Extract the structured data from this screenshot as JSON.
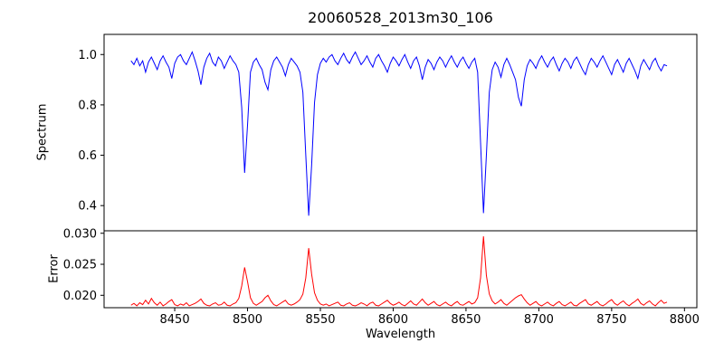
{
  "figure": {
    "background": "#ffffff",
    "spine_color": "#000000"
  },
  "chart_data": {
    "type": "line",
    "title": "20060528_2013m30_106",
    "xlabel": "Wavelength",
    "xlim": [
      8401.5,
      8808.5
    ],
    "xticks": [
      8450,
      8500,
      8550,
      8600,
      8650,
      8700,
      8750,
      8800
    ],
    "xticklabels": [
      "8450",
      "8500",
      "8550",
      "8600",
      "8650",
      "8700",
      "8750",
      "8800"
    ],
    "x": [
      8420,
      8422,
      8424,
      8426,
      8428,
      8430,
      8432,
      8434,
      8436,
      8438,
      8440,
      8442,
      8444,
      8446,
      8448,
      8450,
      8452,
      8454,
      8456,
      8458,
      8460,
      8462,
      8464,
      8466,
      8468,
      8470,
      8472,
      8474,
      8476,
      8478,
      8480,
      8482,
      8484,
      8486,
      8488,
      8490,
      8492,
      8494,
      8496,
      8498,
      8500,
      8502,
      8504,
      8506,
      8508,
      8510,
      8512,
      8514,
      8516,
      8518,
      8520,
      8522,
      8524,
      8526,
      8528,
      8530,
      8532,
      8534,
      8536,
      8538,
      8540,
      8542,
      8544,
      8546,
      8548,
      8550,
      8552,
      8554,
      8556,
      8558,
      8560,
      8562,
      8564,
      8566,
      8568,
      8570,
      8572,
      8574,
      8576,
      8578,
      8580,
      8582,
      8584,
      8586,
      8588,
      8590,
      8592,
      8594,
      8596,
      8598,
      8600,
      8602,
      8604,
      8606,
      8608,
      8610,
      8612,
      8614,
      8616,
      8618,
      8620,
      8622,
      8624,
      8626,
      8628,
      8630,
      8632,
      8634,
      8636,
      8638,
      8640,
      8642,
      8644,
      8646,
      8648,
      8650,
      8652,
      8654,
      8656,
      8658,
      8660,
      8662,
      8664,
      8666,
      8668,
      8670,
      8672,
      8674,
      8676,
      8678,
      8680,
      8682,
      8684,
      8686,
      8688,
      8690,
      8692,
      8694,
      8696,
      8698,
      8700,
      8702,
      8704,
      8706,
      8708,
      8710,
      8712,
      8714,
      8716,
      8718,
      8720,
      8722,
      8724,
      8726,
      8728,
      8730,
      8732,
      8734,
      8736,
      8738,
      8740,
      8742,
      8744,
      8746,
      8748,
      8750,
      8752,
      8754,
      8756,
      8758,
      8760,
      8762,
      8764,
      8766,
      8768,
      8770,
      8772,
      8774,
      8776,
      8778,
      8780,
      8782,
      8784,
      8786,
      8788
    ],
    "panels": [
      {
        "name": "spectrum",
        "ylabel": "Spectrum",
        "color": "#0000ff",
        "ylim": [
          0.3,
          1.08
        ],
        "yticks": [
          0.4,
          0.6,
          0.8,
          1.0
        ],
        "yticklabels": [
          "0.4",
          "0.6",
          "0.8",
          "1.0"
        ],
        "values": [
          0.975,
          0.96,
          0.985,
          0.955,
          0.975,
          0.93,
          0.97,
          0.99,
          0.965,
          0.94,
          0.975,
          0.995,
          0.97,
          0.95,
          0.905,
          0.965,
          0.99,
          1.0,
          0.975,
          0.96,
          0.985,
          1.01,
          0.975,
          0.935,
          0.88,
          0.95,
          0.985,
          1.005,
          0.97,
          0.955,
          0.99,
          0.975,
          0.945,
          0.97,
          0.995,
          0.975,
          0.96,
          0.93,
          0.79,
          0.53,
          0.72,
          0.93,
          0.97,
          0.985,
          0.96,
          0.94,
          0.89,
          0.86,
          0.94,
          0.975,
          0.99,
          0.97,
          0.95,
          0.915,
          0.96,
          0.985,
          0.97,
          0.955,
          0.93,
          0.85,
          0.6,
          0.36,
          0.56,
          0.81,
          0.92,
          0.965,
          0.985,
          0.97,
          0.99,
          1.0,
          0.975,
          0.96,
          0.985,
          1.005,
          0.98,
          0.965,
          0.99,
          1.01,
          0.985,
          0.96,
          0.975,
          0.995,
          0.97,
          0.95,
          0.985,
          1.0,
          0.975,
          0.955,
          0.93,
          0.965,
          0.99,
          0.975,
          0.955,
          0.98,
          1.0,
          0.97,
          0.945,
          0.975,
          0.99,
          0.955,
          0.9,
          0.95,
          0.98,
          0.965,
          0.94,
          0.97,
          0.99,
          0.975,
          0.95,
          0.975,
          0.995,
          0.97,
          0.95,
          0.975,
          0.99,
          0.965,
          0.945,
          0.97,
          0.985,
          0.93,
          0.65,
          0.37,
          0.6,
          0.85,
          0.94,
          0.97,
          0.95,
          0.91,
          0.96,
          0.985,
          0.96,
          0.93,
          0.9,
          0.83,
          0.795,
          0.9,
          0.955,
          0.98,
          0.965,
          0.945,
          0.975,
          0.995,
          0.97,
          0.95,
          0.975,
          0.99,
          0.96,
          0.935,
          0.965,
          0.985,
          0.97,
          0.945,
          0.975,
          0.99,
          0.965,
          0.94,
          0.92,
          0.96,
          0.985,
          0.97,
          0.95,
          0.975,
          0.995,
          0.97,
          0.945,
          0.92,
          0.96,
          0.98,
          0.955,
          0.93,
          0.965,
          0.985,
          0.96,
          0.935,
          0.905,
          0.955,
          0.98,
          0.96,
          0.94,
          0.97,
          0.985,
          0.955,
          0.935,
          0.96,
          0.955
        ]
      },
      {
        "name": "error",
        "ylabel": "Error",
        "color": "#ff0000",
        "ylim": [
          0.018,
          0.0304
        ],
        "yticks": [
          0.02,
          0.025,
          0.03
        ],
        "yticklabels": [
          "0.020",
          "0.025",
          "0.030"
        ],
        "values": [
          0.0184,
          0.0187,
          0.0183,
          0.0188,
          0.0185,
          0.0192,
          0.0186,
          0.0195,
          0.0188,
          0.0184,
          0.0189,
          0.0183,
          0.0186,
          0.019,
          0.0193,
          0.0185,
          0.0183,
          0.0186,
          0.0184,
          0.0188,
          0.0183,
          0.0185,
          0.0187,
          0.019,
          0.0194,
          0.0187,
          0.0184,
          0.0183,
          0.0186,
          0.0188,
          0.0184,
          0.0185,
          0.0189,
          0.0184,
          0.0183,
          0.0186,
          0.0188,
          0.0195,
          0.0215,
          0.0245,
          0.0222,
          0.0196,
          0.0187,
          0.0184,
          0.0187,
          0.019,
          0.0196,
          0.02,
          0.0191,
          0.0185,
          0.0183,
          0.0186,
          0.0189,
          0.0192,
          0.0186,
          0.0184,
          0.0186,
          0.0189,
          0.0193,
          0.0202,
          0.0228,
          0.0276,
          0.0234,
          0.0204,
          0.0192,
          0.0186,
          0.0184,
          0.0186,
          0.0183,
          0.0185,
          0.0187,
          0.0189,
          0.0184,
          0.0183,
          0.0186,
          0.0188,
          0.0184,
          0.0183,
          0.0185,
          0.0188,
          0.0186,
          0.0183,
          0.0187,
          0.0189,
          0.0184,
          0.0183,
          0.0186,
          0.0189,
          0.0192,
          0.0187,
          0.0184,
          0.0186,
          0.0189,
          0.0185,
          0.0183,
          0.0187,
          0.0191,
          0.0186,
          0.0184,
          0.0189,
          0.0194,
          0.0188,
          0.0184,
          0.0187,
          0.019,
          0.0185,
          0.0183,
          0.0186,
          0.0189,
          0.0185,
          0.0183,
          0.0187,
          0.019,
          0.0185,
          0.0184,
          0.0187,
          0.019,
          0.0186,
          0.0188,
          0.0196,
          0.0228,
          0.0295,
          0.0232,
          0.0202,
          0.0191,
          0.0186,
          0.0189,
          0.0193,
          0.0187,
          0.0184,
          0.0188,
          0.0192,
          0.0196,
          0.0199,
          0.0201,
          0.0194,
          0.0188,
          0.0184,
          0.0187,
          0.019,
          0.0185,
          0.0183,
          0.0186,
          0.0189,
          0.0185,
          0.0183,
          0.0187,
          0.019,
          0.0185,
          0.0183,
          0.0186,
          0.0189,
          0.0184,
          0.0183,
          0.0187,
          0.019,
          0.0193,
          0.0186,
          0.0184,
          0.0187,
          0.019,
          0.0185,
          0.0183,
          0.0186,
          0.019,
          0.0193,
          0.0187,
          0.0184,
          0.0188,
          0.0191,
          0.0186,
          0.0183,
          0.0187,
          0.019,
          0.0194,
          0.0187,
          0.0184,
          0.0188,
          0.0191,
          0.0186,
          0.0183,
          0.0188,
          0.0192,
          0.0187,
          0.0189
        ]
      }
    ],
    "legend": null,
    "grid": false
  }
}
